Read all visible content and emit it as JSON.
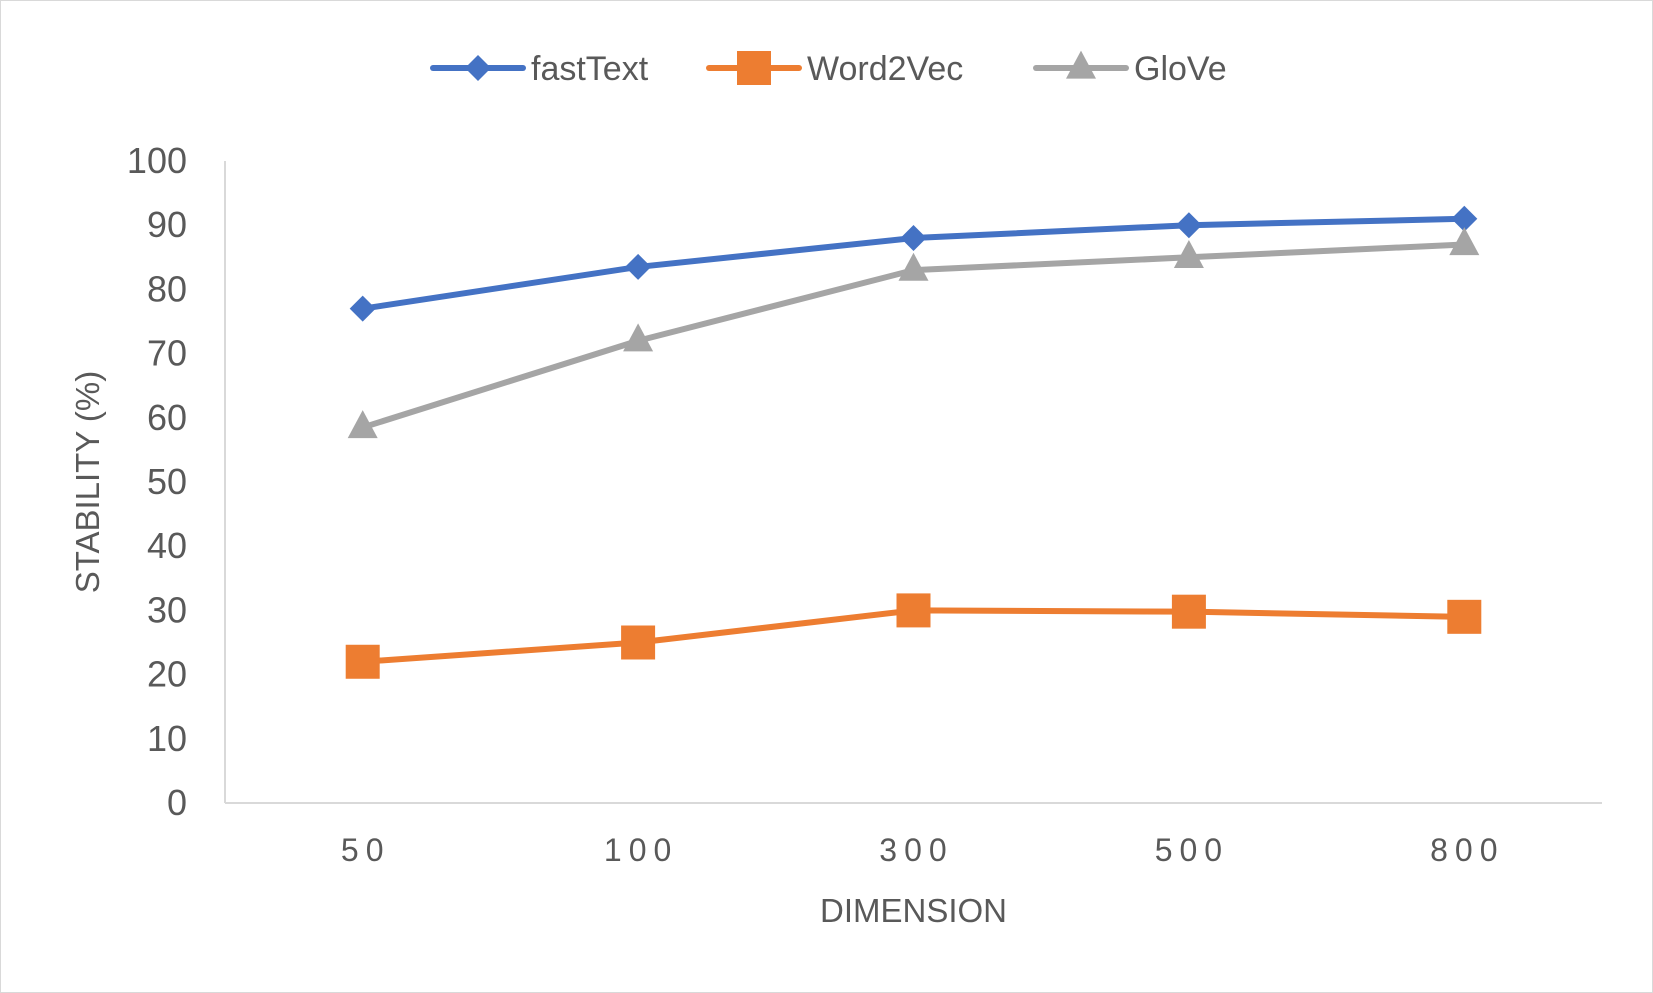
{
  "chart_data": {
    "type": "line",
    "title": "",
    "xlabel": "DIMENSION",
    "ylabel": "STABILITY (%)",
    "categories": [
      "50",
      "100",
      "300",
      "500",
      "800"
    ],
    "ylim": [
      0,
      100
    ],
    "yticks": [
      "0",
      "10",
      "20",
      "30",
      "40",
      "50",
      "60",
      "70",
      "80",
      "90",
      "100"
    ],
    "grid": false,
    "legend_position": "top",
    "series": [
      {
        "name": "fastText",
        "values": [
          77,
          83.5,
          88,
          90,
          91
        ],
        "color": "#4472C4",
        "marker": "diamond"
      },
      {
        "name": "Word2Vec",
        "values": [
          22,
          25,
          30,
          29.8,
          29
        ],
        "color": "#ED7D31",
        "marker": "square"
      },
      {
        "name": "GloVe",
        "values": [
          58.5,
          72,
          83,
          85,
          87
        ],
        "color": "#A5A5A5",
        "marker": "triangle"
      }
    ]
  }
}
